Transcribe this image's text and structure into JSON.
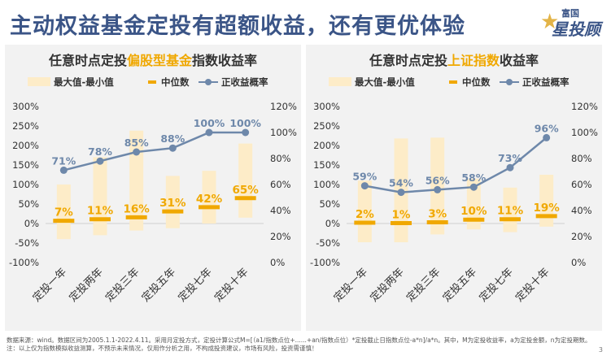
{
  "header": {
    "title": "主动权益基金定投有超额收益，还有更优体验"
  },
  "logo": {
    "top": "富国",
    "main": "星投顾"
  },
  "chart_data": [
    {
      "type": "bar+line",
      "title_prefix": "任意时点定投",
      "title_highlight": "偏股型基金",
      "title_suffix": "指数收益率",
      "legend": [
        "最大值-最小值",
        "中位数",
        "正收益概率"
      ],
      "categories": [
        "定投一年",
        "定投两年",
        "定投三年",
        "定投五年",
        "定投七年",
        "定投十年"
      ],
      "y_left": {
        "min": -100,
        "max": 300,
        "ticks": [
          "300%",
          "250%",
          "200%",
          "150%",
          "100%",
          "50%",
          "0%",
          "-50%",
          "-100%"
        ]
      },
      "y_right": {
        "min": 0,
        "max": 120,
        "ticks": [
          "120%",
          "100%",
          "80%",
          "60%",
          "40%",
          "20%",
          "0%"
        ]
      },
      "range_min": [
        -40,
        -30,
        -18,
        -12,
        0,
        15
      ],
      "range_max": [
        100,
        170,
        238,
        122,
        135,
        205
      ],
      "median": [
        7,
        11,
        16,
        31,
        42,
        65
      ],
      "median_labels": [
        "7%",
        "11%",
        "16%",
        "31%",
        "42%",
        "65%"
      ],
      "prob": [
        71,
        78,
        85,
        88,
        100,
        100
      ],
      "prob_labels": [
        "71%",
        "78%",
        "85%",
        "88%",
        "100%",
        "100%"
      ]
    },
    {
      "type": "bar+line",
      "title_prefix": "任意时点定投",
      "title_highlight": "上证指数",
      "title_suffix": "收益率",
      "legend": [
        "最大值-最小值",
        "中位数",
        "正收益概率"
      ],
      "categories": [
        "定投一年",
        "定投两年",
        "定投三年",
        "定投五年",
        "定投七年",
        "定投十年"
      ],
      "y_left": {
        "min": -100,
        "max": 300,
        "ticks": [
          "300%",
          "250%",
          "200%",
          "150%",
          "100%",
          "50%",
          "0%",
          "-50%",
          "-100%"
        ]
      },
      "y_right": {
        "min": 0,
        "max": 120,
        "ticks": [
          "120%",
          "100%",
          "80%",
          "60%",
          "40%",
          "20%",
          "0%"
        ]
      },
      "range_min": [
        -48,
        -48,
        -28,
        -15,
        -22,
        -8
      ],
      "range_max": [
        110,
        218,
        220,
        115,
        92,
        125
      ],
      "median": [
        2,
        1,
        3,
        10,
        11,
        19
      ],
      "median_labels": [
        "2%",
        "1%",
        "3%",
        "10%",
        "11%",
        "19%"
      ],
      "prob": [
        59,
        54,
        56,
        58,
        73,
        96
      ],
      "prob_labels": [
        "59%",
        "54%",
        "56%",
        "58%",
        "73%",
        "96%"
      ]
    }
  ],
  "colors": {
    "title": "#3b5587",
    "band": "#fdecc8",
    "median": "#f0a800",
    "line": "#6e88aa",
    "highlight": "#f0a800"
  },
  "footer": {
    "line1": "数据来源：wind。数据区间为2005.1.1-2022.4.11。采用月定投方式，定投计算公式M=[（a1/指数点位+......+an/指数点位）*定投截止日指数点位-a*n]/a*n。其中，M为定投收益率，a为定投金额，n为定投期数。注：以上仅为指数模拟收益测算，不预示未来情况，仅用作分析之用，不构成投资建议，市场有风险，投资需谨慎！"
  },
  "page_number": "3"
}
